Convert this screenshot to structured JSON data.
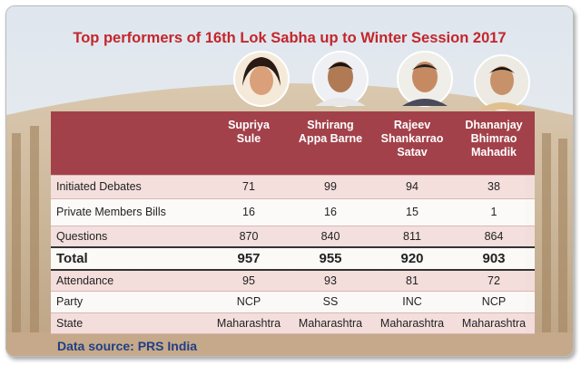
{
  "title": "Top performers of 16th Lok Sabha up to Winter Session 2017",
  "table": {
    "columns": [
      [
        "Supriya",
        "Sule"
      ],
      [
        "Shrirang",
        "Appa Barne"
      ],
      [
        "Rajeev",
        "Shankarrao",
        "Satav"
      ],
      [
        "Dhananjay",
        "Bhimrao",
        "Mahadik"
      ]
    ],
    "rows": [
      [
        "Initiated Debates",
        71,
        99,
        94,
        38
      ],
      [
        "Private Members Bills",
        16,
        16,
        15,
        1
      ],
      [
        "Questions",
        870,
        840,
        811,
        864
      ],
      [
        "Total",
        957,
        955,
        920,
        903
      ],
      [
        "Attendance",
        95,
        93,
        81,
        72
      ],
      [
        "Party",
        "NCP",
        "SS",
        "INC",
        "NCP"
      ],
      [
        "State",
        "Maharashtra",
        "Maharashtra",
        "Maharashtra",
        "Maharashtra"
      ]
    ]
  },
  "source": "Data source: PRS India"
}
